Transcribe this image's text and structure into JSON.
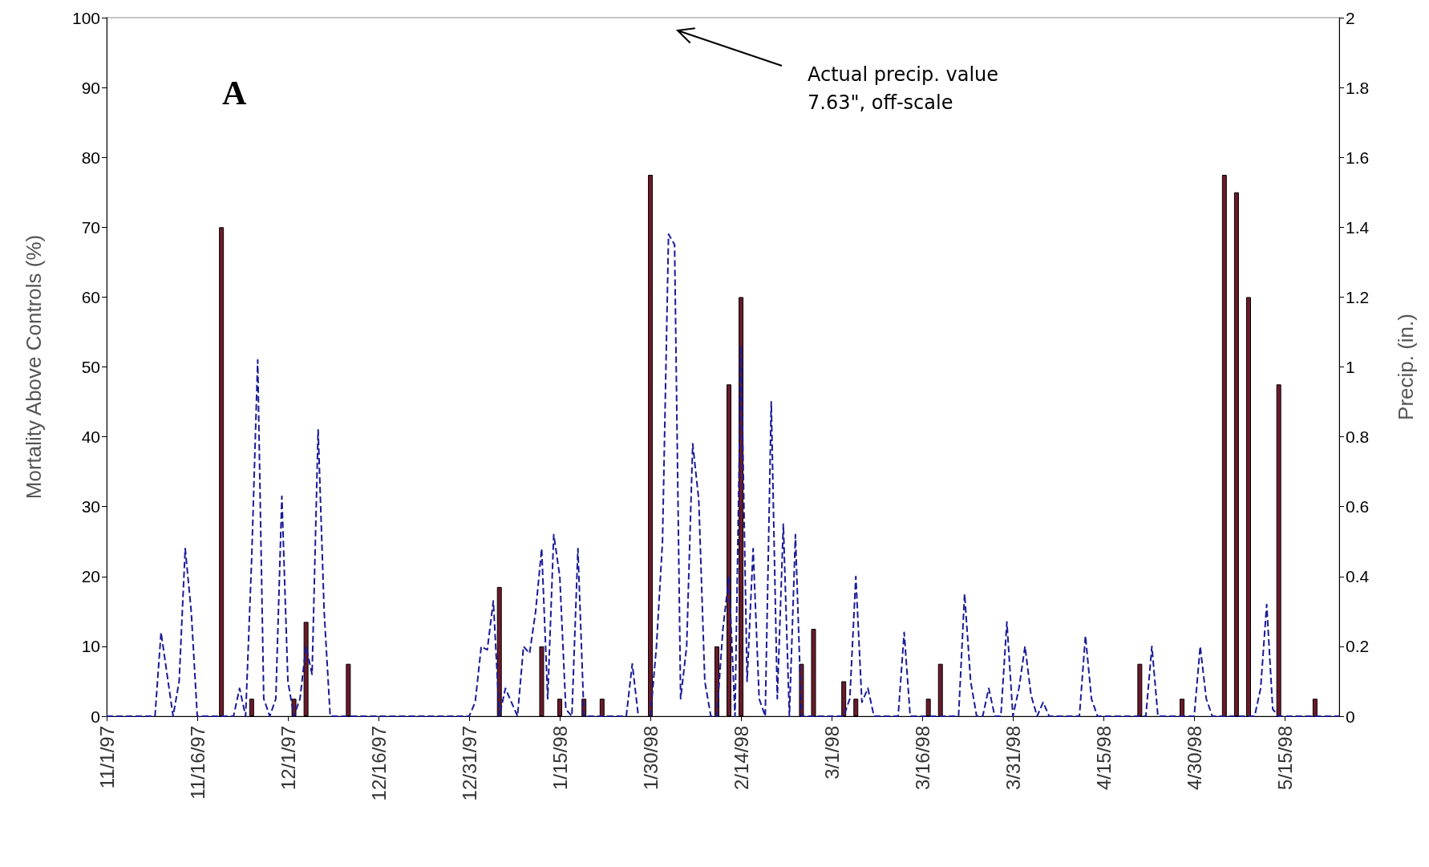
{
  "chart_data": {
    "type": "bar",
    "ylabel": "Mortality Above Controls (%)",
    "y2label": "Precip. (in.)",
    "annotations": [
      "A",
      "Actual precip. value\n7.63\", off-scale"
    ],
    "xlim": [
      "1997-11-01",
      "1998-05-24"
    ],
    "xticks": [
      {
        "value": "1997-11-01",
        "label": "11/1/97"
      },
      {
        "value": "1997-11-16",
        "label": "11/16/97"
      },
      {
        "value": "1997-12-01",
        "label": "12/1/97"
      },
      {
        "value": "1997-12-16",
        "label": "12/16/97"
      },
      {
        "value": "1997-12-31",
        "label": "12/31/97"
      },
      {
        "value": "1998-01-15",
        "label": "1/15/98"
      },
      {
        "value": "1998-01-30",
        "label": "1/30/98"
      },
      {
        "value": "1998-02-14",
        "label": "2/14/98"
      },
      {
        "value": "1998-03-01",
        "label": "3/1/98"
      },
      {
        "value": "1998-03-16",
        "label": "3/16/98"
      },
      {
        "value": "1998-03-31",
        "label": "3/31/98"
      },
      {
        "value": "1998-04-15",
        "label": "4/15/98"
      },
      {
        "value": "1998-04-30",
        "label": "4/30/98"
      },
      {
        "value": "1998-05-15",
        "label": "5/15/98"
      }
    ],
    "ylim": [
      0,
      100
    ],
    "yticks": [
      0,
      10,
      20,
      30,
      40,
      50,
      60,
      70,
      80,
      90,
      100
    ],
    "y2lim": [
      0,
      2
    ],
    "y2ticks": [
      0,
      0.2,
      0.4,
      0.6,
      0.8,
      1,
      1.2,
      1.4,
      1.6,
      1.8,
      2
    ],
    "grid": false,
    "series": [
      {
        "color": "#6b1a2a",
        "x": [
          "1997-11-20",
          "1997-11-25",
          "1997-12-02",
          "1997-12-04",
          "1997-12-11",
          "1998-01-05",
          "1998-01-12",
          "1998-01-15",
          "1998-01-19",
          "1998-01-22",
          "1998-01-30",
          "1998-02-10",
          "1998-02-12",
          "1998-02-14",
          "1998-02-24",
          "1998-02-26",
          "1998-03-03",
          "1998-03-05",
          "1998-03-17",
          "1998-03-19",
          "1998-04-21",
          "1998-04-28",
          "1998-05-05",
          "1998-05-07",
          "1998-05-09",
          "1998-05-14",
          "1998-05-20"
        ],
        "values": [
          70,
          2.5,
          2.5,
          13.5,
          7.5,
          18.5,
          10,
          2.5,
          2.5,
          2.5,
          77.5,
          10,
          47.5,
          60,
          7.5,
          12.5,
          5,
          2.5,
          2.5,
          7.5,
          7.5,
          2.5,
          77.5,
          75,
          60,
          47.5,
          2.5
        ]
      },
      {
        "type": "line",
        "axis": "y2",
        "color": "#1a1a99",
        "line_style": "dashed",
        "marker": "none",
        "x": [
          "1997-11-01",
          "1997-11-09",
          "1997-11-10",
          "1997-11-11",
          "1997-11-12",
          "1997-11-13",
          "1997-11-14",
          "1997-11-15",
          "1997-11-16",
          "1997-11-22",
          "1997-11-23",
          "1997-11-24",
          "1997-11-25",
          "1997-11-26",
          "1997-11-27",
          "1997-11-28",
          "1997-11-29",
          "1997-11-30",
          "1997-12-01",
          "1997-12-02",
          "1997-12-03",
          "1997-12-04",
          "1997-12-05",
          "1997-12-06",
          "1997-12-07",
          "1997-12-08",
          "1997-12-31",
          "1998-01-01",
          "1998-01-02",
          "1998-01-03",
          "1998-01-04",
          "1998-01-05",
          "1998-01-06",
          "1998-01-07",
          "1998-01-08",
          "1998-01-09",
          "1998-01-10",
          "1998-01-11",
          "1998-01-12",
          "1998-01-13",
          "1998-01-14",
          "1998-01-15",
          "1998-01-16",
          "1998-01-17",
          "1998-01-18",
          "1998-01-19",
          "1998-01-26",
          "1998-01-27",
          "1998-01-28",
          "1998-01-29",
          "1998-01-30",
          "1998-01-31",
          "1998-02-01",
          "1998-02-02",
          "1998-02-03",
          "1998-02-04",
          "1998-02-05",
          "1998-02-06",
          "1998-02-07",
          "1998-02-08",
          "1998-02-09",
          "1998-02-10",
          "1998-02-11",
          "1998-02-12",
          "1998-02-13",
          "1998-02-14",
          "1998-02-15",
          "1998-02-16",
          "1998-02-17",
          "1998-02-18",
          "1998-02-19",
          "1998-02-20",
          "1998-02-21",
          "1998-02-22",
          "1998-02-23",
          "1998-02-24",
          "1998-03-03",
          "1998-03-04",
          "1998-03-05",
          "1998-03-06",
          "1998-03-07",
          "1998-03-08",
          "1998-03-12",
          "1998-03-13",
          "1998-03-14",
          "1998-03-22",
          "1998-03-23",
          "1998-03-24",
          "1998-03-25",
          "1998-03-26",
          "1998-03-27",
          "1998-03-28",
          "1998-03-29",
          "1998-03-30",
          "1998-03-31",
          "1998-04-01",
          "1998-04-02",
          "1998-04-03",
          "1998-04-04",
          "1998-04-05",
          "1998-04-06",
          "1998-04-11",
          "1998-04-12",
          "1998-04-13",
          "1998-04-14",
          "1998-04-22",
          "1998-04-23",
          "1998-04-24",
          "1998-04-30",
          "1998-05-01",
          "1998-05-02",
          "1998-05-03",
          "1998-05-10",
          "1998-05-11",
          "1998-05-12",
          "1998-05-13",
          "1998-05-14",
          "1998-05-24"
        ],
        "values": [
          0,
          0,
          0.24,
          0.12,
          0,
          0.1,
          0.48,
          0.3,
          0,
          0,
          0.08,
          0,
          0.45,
          1.02,
          0.05,
          0,
          0.05,
          0.63,
          0.1,
          0,
          0.05,
          0.2,
          0.12,
          0.82,
          0.3,
          0,
          0,
          0.04,
          0.2,
          0.19,
          0.33,
          0,
          0.08,
          0.04,
          0,
          0.2,
          0.18,
          0.3,
          0.48,
          0.05,
          0.52,
          0.4,
          0.02,
          0,
          0.48,
          0,
          0,
          0.15,
          0,
          null,
          0,
          0.2,
          0.5,
          1.38,
          1.35,
          0.05,
          0.2,
          0.78,
          0.62,
          0.1,
          0,
          0,
          0.25,
          0.4,
          0,
          1.06,
          0.1,
          0.48,
          0.05,
          0,
          0.9,
          0.05,
          0.55,
          0,
          0.52,
          0,
          0,
          0.05,
          0.4,
          0.04,
          0.08,
          0,
          0,
          0.24,
          0,
          0,
          0.35,
          0.1,
          0,
          0,
          0.08,
          0,
          0,
          0.27,
          0,
          0.08,
          0.2,
          0.06,
          0,
          0.04,
          0,
          0,
          0.23,
          0.05,
          0,
          0,
          0.2,
          0,
          0,
          0.2,
          0.05,
          0,
          0,
          0.08,
          0.32,
          0.02,
          0,
          0
        ]
      }
    ]
  }
}
